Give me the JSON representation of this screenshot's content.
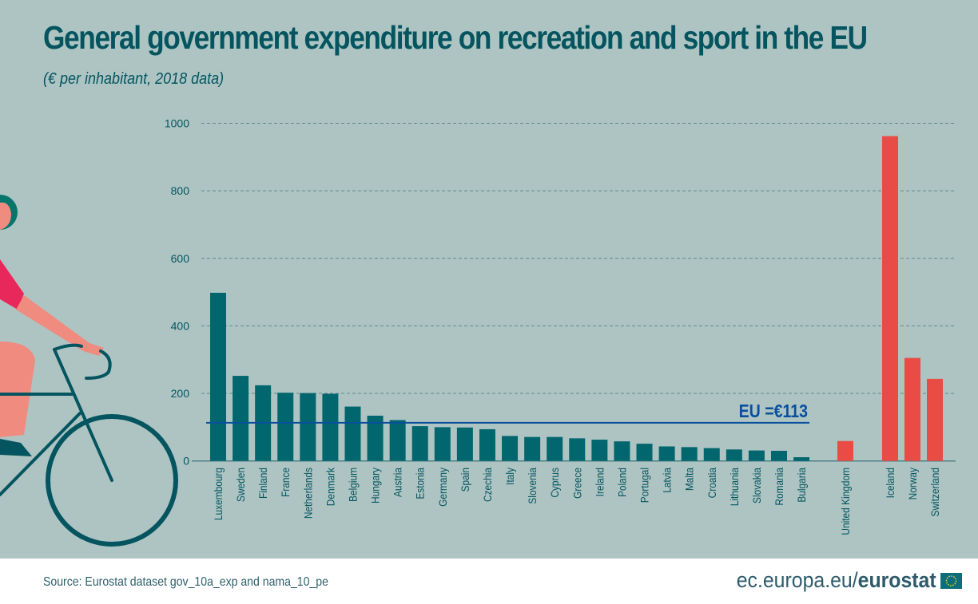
{
  "colors": {
    "background": "#aec4c2",
    "eu_bar": "#02666e",
    "non_eu_bar": "#e84c44",
    "eu_avg_line": "#0a4f9c",
    "text": "#045560",
    "grid": "#5e8a8c"
  },
  "chart_data": {
    "type": "bar",
    "title": "General government expenditure on recreation and sport in the EU",
    "subtitle": "(€ per inhabitant, 2018 data)",
    "xlabel": "",
    "ylabel": "",
    "ylim": [
      0,
      1000
    ],
    "yticks": [
      0,
      200,
      400,
      600,
      800,
      1000
    ],
    "grid": true,
    "categories": [
      "Luxembourg",
      "Sweden",
      "Finland",
      "France",
      "Netherlands",
      "Denmark",
      "Belgium",
      "Hungary",
      "Austria",
      "Estonia",
      "Germany",
      "Spain",
      "Czechia",
      "Italy",
      "Slovenia",
      "Cyprus",
      "Greece",
      "Ireland",
      "Poland",
      "Portugal",
      "Latvia",
      "Malta",
      "Croatia",
      "Lithuania",
      "Slovakia",
      "Romania",
      "Bulgaria",
      "United Kingdom",
      "Iceland",
      "Norway",
      "Switzerland"
    ],
    "groups": [
      "eu",
      "eu",
      "eu",
      "eu",
      "eu",
      "eu",
      "eu",
      "eu",
      "eu",
      "eu",
      "eu",
      "eu",
      "eu",
      "eu",
      "eu",
      "eu",
      "eu",
      "eu",
      "eu",
      "eu",
      "eu",
      "eu",
      "eu",
      "eu",
      "eu",
      "eu",
      "eu",
      "non-eu",
      "non-eu",
      "non-eu",
      "non-eu"
    ],
    "values": [
      498,
      252,
      224,
      202,
      201,
      199,
      161,
      134,
      121,
      103,
      100,
      99,
      94,
      74,
      71,
      71,
      67,
      63,
      58,
      51,
      43,
      41,
      38,
      34,
      31,
      30,
      11,
      59,
      962,
      305,
      243
    ],
    "reference_line": {
      "label": "EU =€113",
      "value": 113
    }
  },
  "footer": {
    "source": "Source: Eurostat dataset gov_10a_exp and nama_10_pe",
    "brand_prefix": "ec.europa.eu/",
    "brand_bold": "eurostat"
  },
  "icons": {
    "illustration": "cyclist-illustration",
    "flag": "eu-flag-icon"
  }
}
